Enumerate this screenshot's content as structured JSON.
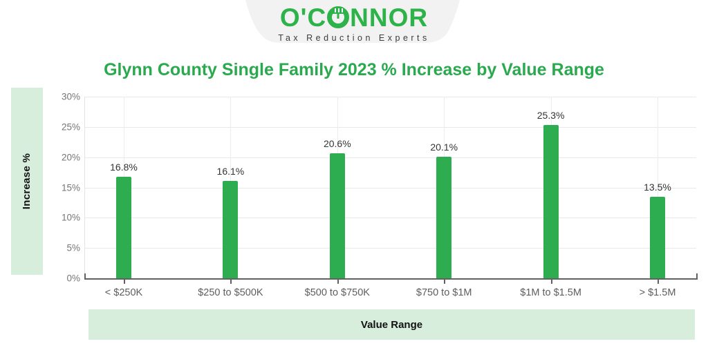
{
  "brand": {
    "logo_text_pre": "O'C",
    "logo_text_post": "NNOR",
    "logo_icon": "tape-measure-o-icon",
    "tagline": "Tax Reduction Experts"
  },
  "title": "Glynn County Single Family 2023 % Increase by Value Range",
  "chart_data": {
    "type": "bar",
    "title": "Glynn County Single Family 2023 % Increase by Value Range",
    "categories": [
      "< $250K",
      "$250 to $500K",
      "$500 to $750K",
      "$750 to $1M",
      "$1M to $1.5M",
      "> $1.5M"
    ],
    "values": [
      16.8,
      16.1,
      20.6,
      20.1,
      25.3,
      13.5
    ],
    "value_labels": [
      "16.8%",
      "16.1%",
      "20.6%",
      "20.1%",
      "25.3%",
      "13.5%"
    ],
    "xlabel": "Value Range",
    "ylabel": "Increase %",
    "ylim": [
      0,
      30
    ],
    "ytick_step": 5,
    "ytick_labels": [
      "0%",
      "5%",
      "10%",
      "15%",
      "20%",
      "25%",
      "30%"
    ],
    "grid": true,
    "legend": "none",
    "bar_color": "#2eac50"
  },
  "colors": {
    "brand_green": "#2eb24a",
    "title_green": "#2aa94f",
    "bar_green": "#2eac50",
    "light_green": "#d7eedd",
    "badge_gray": "#f2f2f2",
    "grid_gray": "#e8e8e8",
    "axis_gray": "#616161",
    "tick_text": "#757575"
  }
}
